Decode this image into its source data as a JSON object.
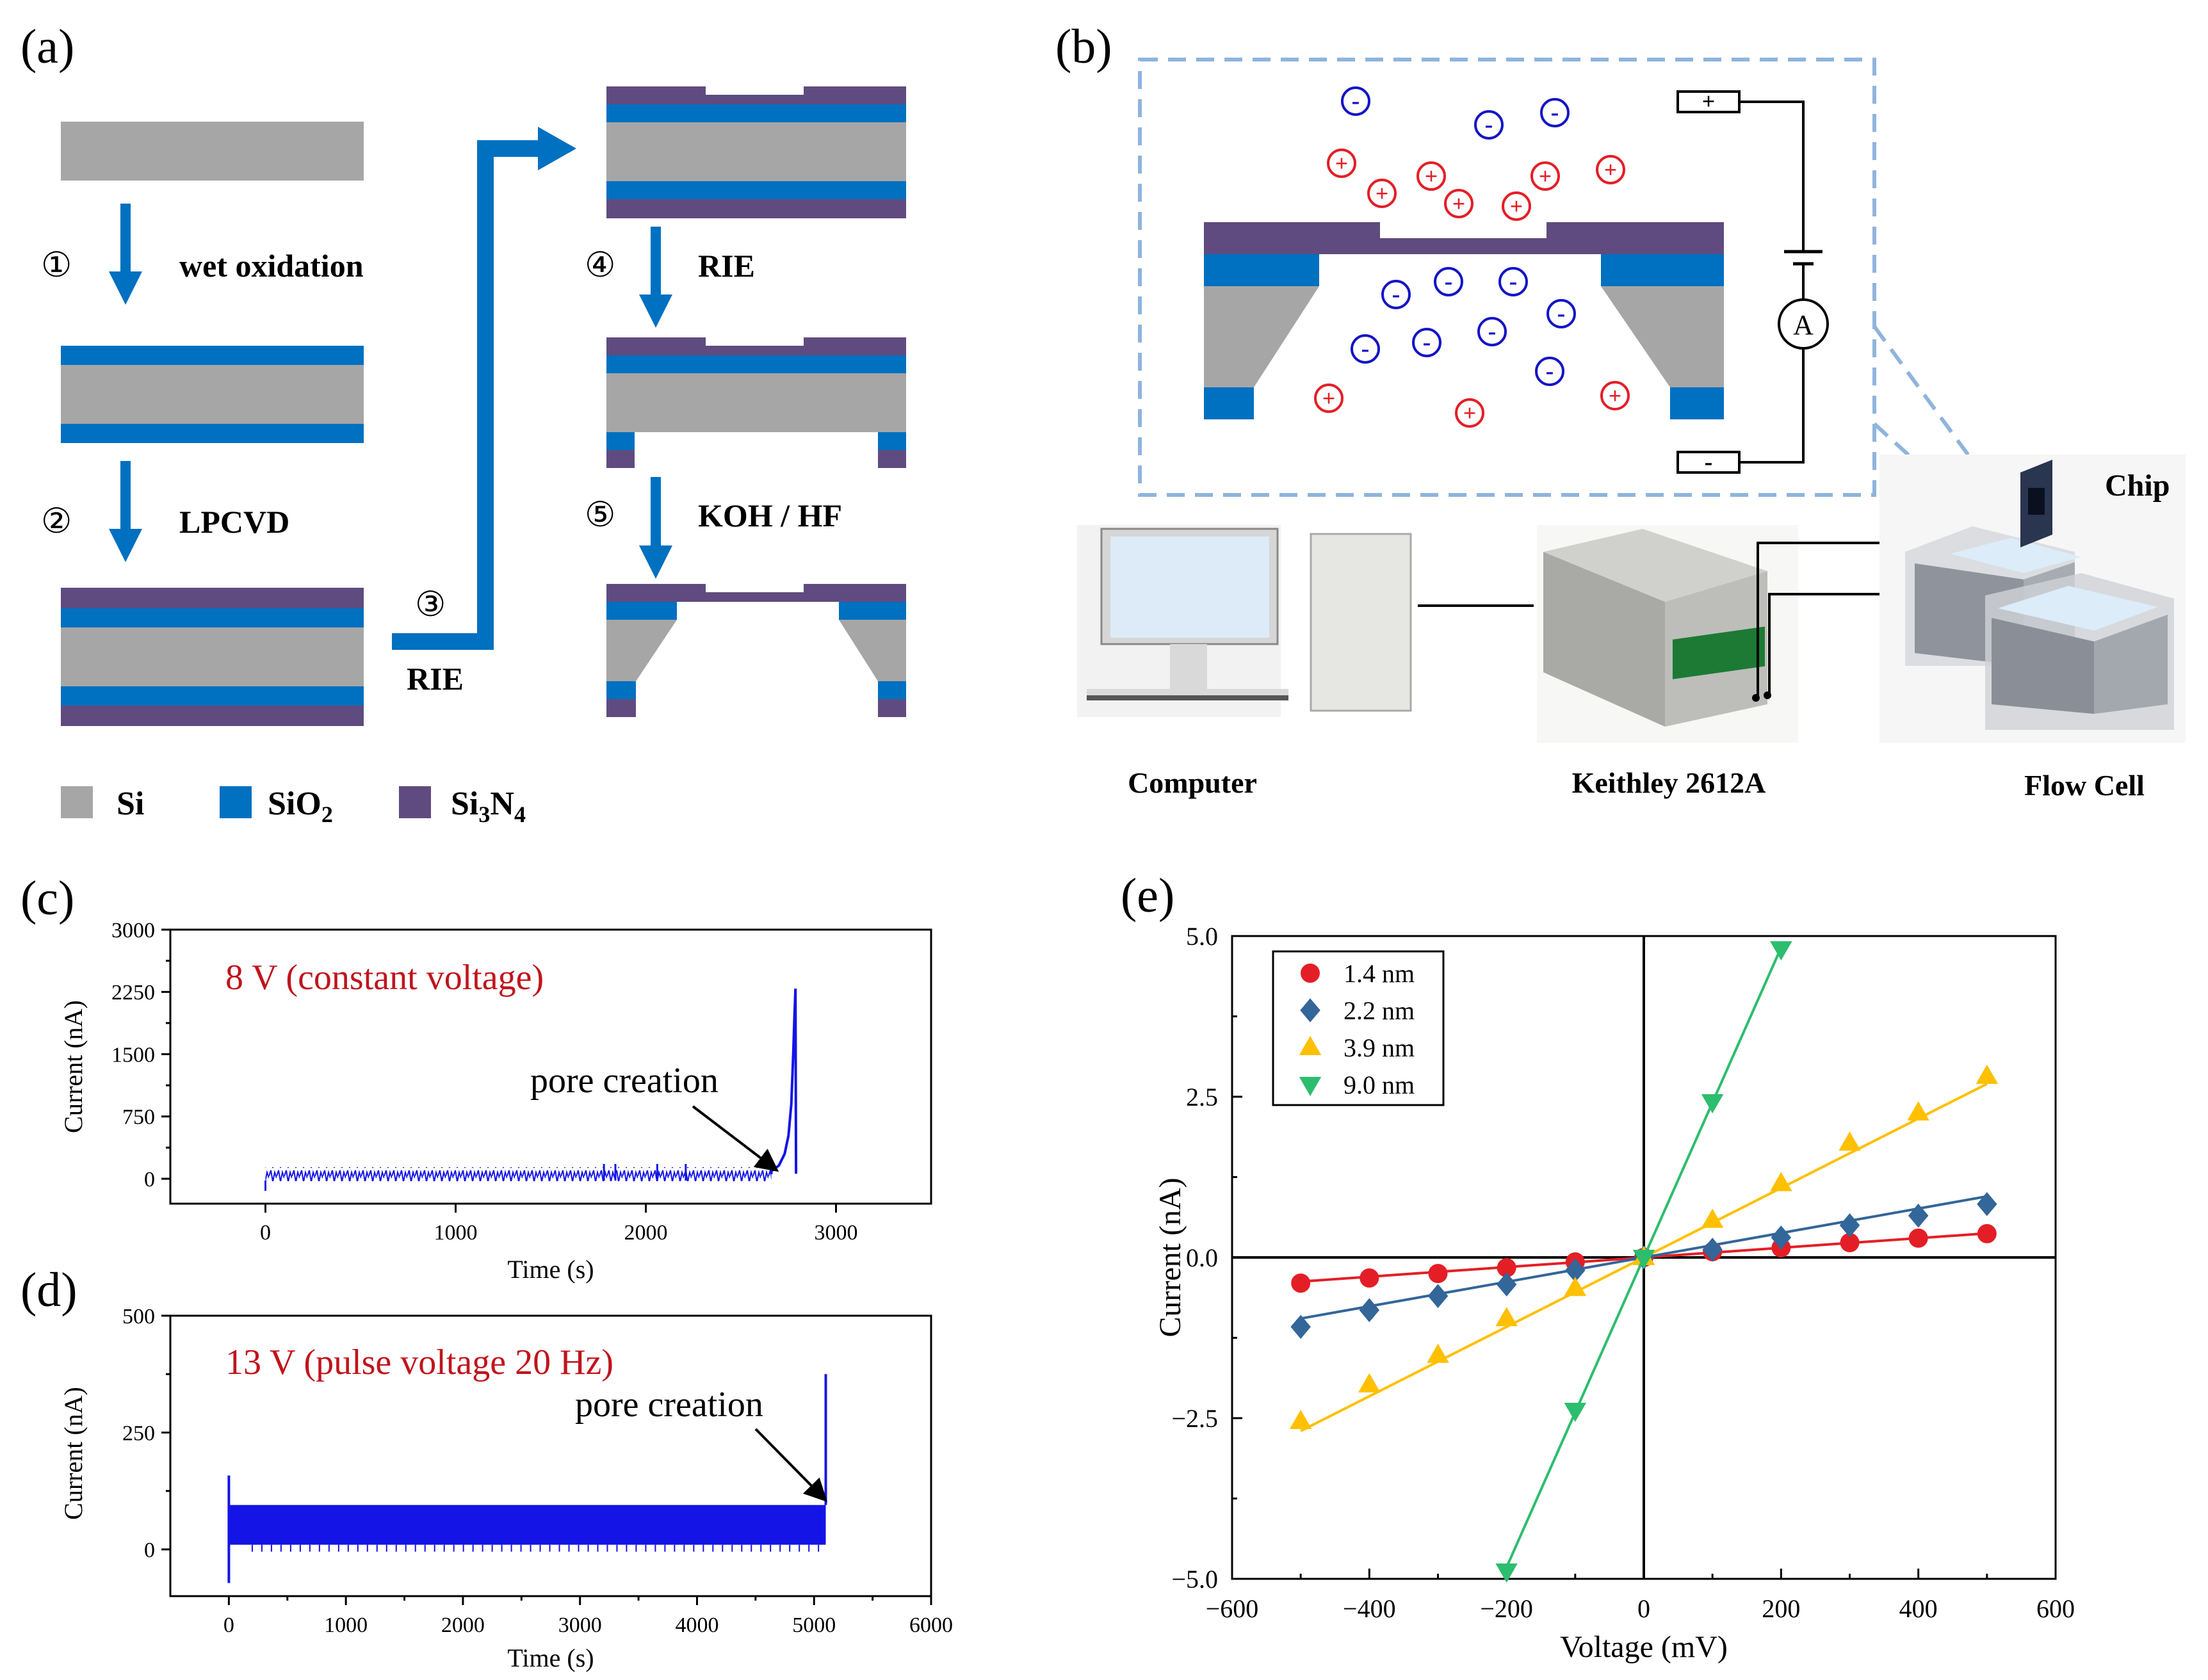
{
  "figure": {
    "panel_labels": {
      "a": "(a)",
      "b": "(b)",
      "c": "(c)",
      "d": "(d)",
      "e": "(e)"
    },
    "colors": {
      "si": "#a6a6a6",
      "sio2": "#0070c0",
      "si3n4": "#5f4b7f",
      "arrow": "#0070c0",
      "red": "#e41e26",
      "blue": "#1414c8",
      "dash": "#8fb4dc"
    }
  },
  "panel_a": {
    "steps": [
      {
        "num": "①",
        "label": "wet oxidation"
      },
      {
        "num": "②",
        "label": "LPCVD"
      },
      {
        "num": "③",
        "label": "RIE"
      },
      {
        "num": "④",
        "label": "RIE"
      },
      {
        "num": "⑤",
        "label": "KOH / HF"
      }
    ],
    "legend": [
      {
        "name": "Si",
        "sub": "",
        "tail": "",
        "sub2": "",
        "color": "#a6a6a6"
      },
      {
        "name": "SiO",
        "sub": "2",
        "tail": "",
        "sub2": "",
        "color": "#0070c0"
      },
      {
        "name": "Si",
        "sub": "3",
        "tail": "N",
        "sub2": "4",
        "color": "#5f4b7f"
      }
    ]
  },
  "panel_b": {
    "battery_plus": "+",
    "battery_minus": "-",
    "ammeter": "A",
    "ion_pos": "+",
    "ion_neg": "-",
    "chip_label": "Chip",
    "computer_label": "Computer",
    "instrument_label": "Keithley 2612A",
    "flowcell_label": "Flow Cell"
  },
  "chart_data": [
    {
      "id": "c",
      "type": "line",
      "annotation": "8 V (constant voltage)",
      "arrow_text": "pore creation",
      "xlabel": "Time (s)",
      "ylabel": "Current (nA)",
      "xlim": [
        -500,
        3500
      ],
      "ylim": [
        -300,
        3000
      ],
      "xticks": [
        0,
        1000,
        2000,
        3000
      ],
      "yticks": [
        0,
        750,
        1500,
        2250,
        3000
      ],
      "trace": {
        "start": 0,
        "end": 2660,
        "baseline": 55,
        "noise": 30,
        "rise": [
          [
            2660,
            90
          ],
          [
            2700,
            160
          ],
          [
            2730,
            300
          ],
          [
            2750,
            520
          ],
          [
            2765,
            900
          ],
          [
            2775,
            1500
          ],
          [
            2782,
            2000
          ],
          [
            2787,
            2290
          ],
          [
            2790,
            60
          ]
        ]
      },
      "arrow_to": [
        2690,
        100
      ]
    },
    {
      "id": "d",
      "type": "line",
      "annotation": "13 V (pulse voltage 20 Hz)",
      "arrow_text": "pore creation",
      "xlabel": "Time (s)",
      "ylabel": "Current (nA)",
      "xlim": [
        -500,
        6000
      ],
      "ylim": [
        -100,
        500
      ],
      "xticks": [
        0,
        1000,
        2000,
        3000,
        4000,
        5000,
        6000
      ],
      "yticks": [
        0,
        250,
        500
      ],
      "trace": {
        "start": 0,
        "end": 5100,
        "low": 10,
        "high": 95,
        "spike_start_high": 158,
        "spike_start_low": -72,
        "spike_end": 375
      },
      "arrow_to": [
        5100,
        105
      ]
    },
    {
      "id": "e",
      "type": "scatter",
      "xlabel": "Voltage (mV)",
      "ylabel": "Current (nA)",
      "xlim": [
        -600,
        600
      ],
      "ylim": [
        -5.0,
        5.0
      ],
      "xticks": [
        -600,
        -400,
        -200,
        0,
        200,
        400,
        600
      ],
      "yticks": [
        -5.0,
        -2.5,
        0.0,
        2.5,
        5.0
      ],
      "xtick_labels": [
        "−600",
        "−400",
        "−200",
        "0",
        "200",
        "400",
        "600"
      ],
      "ytick_labels": [
        "−5.0",
        "−2.5",
        "0.0",
        "2.5",
        "5.0"
      ],
      "series": [
        {
          "name": "1.4 nm",
          "marker": "circle",
          "color": "#e41e26",
          "x": [
            -500,
            -400,
            -300,
            -200,
            -100,
            0,
            100,
            200,
            300,
            400,
            500
          ],
          "y": [
            -0.4,
            -0.32,
            -0.25,
            -0.16,
            -0.07,
            0.0,
            0.09,
            0.15,
            0.23,
            0.3,
            0.37
          ],
          "fit_slope": 0.00075
        },
        {
          "name": "2.2 nm",
          "marker": "diamond",
          "color": "#336699",
          "x": [
            -500,
            -400,
            -300,
            -200,
            -100,
            0,
            100,
            200,
            300,
            400,
            500
          ],
          "y": [
            -1.08,
            -0.82,
            -0.6,
            -0.42,
            -0.2,
            0.0,
            0.12,
            0.31,
            0.5,
            0.65,
            0.83
          ],
          "fit_slope": 0.0019
        },
        {
          "name": "3.9 nm",
          "marker": "triangle-up",
          "color": "#ffc000",
          "x": [
            -500,
            -400,
            -300,
            -200,
            -100,
            0,
            100,
            200,
            300,
            400,
            500
          ],
          "y": [
            -2.55,
            -1.98,
            -1.52,
            -0.95,
            -0.48,
            0.0,
            0.58,
            1.15,
            1.78,
            2.25,
            2.82
          ],
          "fit_slope": 0.0054
        },
        {
          "name": "9.0 nm",
          "marker": "triangle-down",
          "color": "#2dbd6e",
          "x": [
            -200,
            -100,
            0,
            100,
            200
          ],
          "y": [
            -4.88,
            -2.38,
            0.0,
            2.42,
            4.8
          ],
          "fit_slope": 0.0241
        }
      ]
    }
  ]
}
